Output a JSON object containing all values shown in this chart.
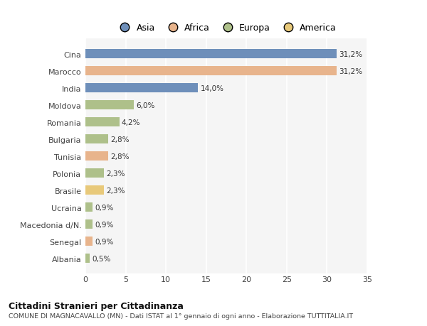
{
  "categories": [
    "Cina",
    "Marocco",
    "India",
    "Moldova",
    "Romania",
    "Bulgaria",
    "Tunisia",
    "Polonia",
    "Brasile",
    "Ucraina",
    "Macedonia d/N.",
    "Senegal",
    "Albania"
  ],
  "values": [
    31.2,
    31.2,
    14.0,
    6.0,
    4.2,
    2.8,
    2.8,
    2.3,
    2.3,
    0.9,
    0.9,
    0.9,
    0.5
  ],
  "labels": [
    "31,2%",
    "31,2%",
    "14,0%",
    "6,0%",
    "4,2%",
    "2,8%",
    "2,8%",
    "2,3%",
    "2,3%",
    "0,9%",
    "0,9%",
    "0,9%",
    "0,5%"
  ],
  "bar_colors": [
    "#6e8fba",
    "#e8b48c",
    "#6e8fba",
    "#aec08a",
    "#aec08a",
    "#aec08a",
    "#e8b48c",
    "#aec08a",
    "#e8c97a",
    "#aec08a",
    "#aec08a",
    "#e8b48c",
    "#aec08a"
  ],
  "legend_labels": [
    "Asia",
    "Africa",
    "Europa",
    "America"
  ],
  "legend_colors": [
    "#6e8fba",
    "#e8b48c",
    "#aec08a",
    "#e8c97a"
  ],
  "title": "Cittadini Stranieri per Cittadinanza",
  "subtitle": "COMUNE DI MAGNACAVALLO (MN) - Dati ISTAT al 1° gennaio di ogni anno - Elaborazione TUTTITALIA.IT",
  "xlim": [
    0,
    35
  ],
  "xticks": [
    0,
    5,
    10,
    15,
    20,
    25,
    30,
    35
  ],
  "bg_color": "#ffffff",
  "plot_bg_color": "#f5f5f5",
  "grid_color": "#ffffff"
}
